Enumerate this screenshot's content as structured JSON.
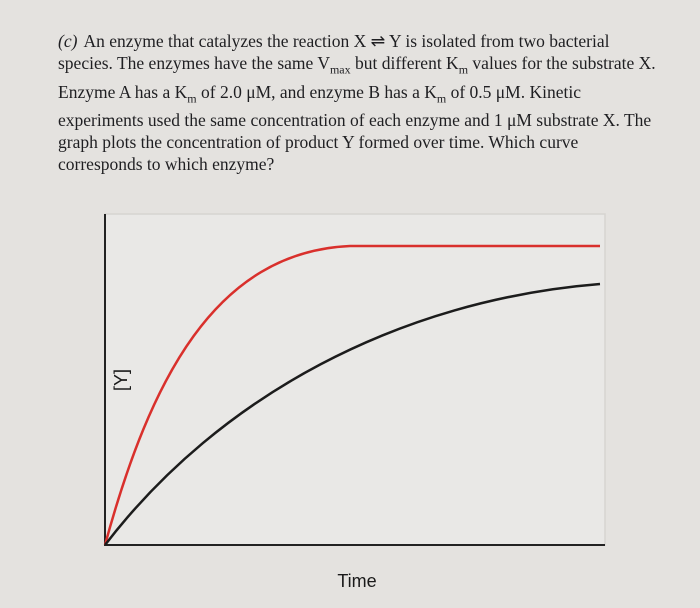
{
  "problem": {
    "label": "(c)",
    "question": [
      "An enzyme that catalyzes the reaction X ⇌ Y is isolated from two bacterial species. The enzymes have the same V",
      "max",
      " but different K",
      "m",
      " values for the substrate X. Enzyme A has a K",
      "m",
      " of 2.0 μM, and enzyme B has a K",
      "m",
      " of 0.5 μM. Kinetic experiments used the same concentration of each enzyme and 1 μM substrate X. The graph plots the concentration of product Y formed over time. Which curve corresponds to which enzyme?"
    ]
  },
  "graph": {
    "y_label": "[Y]",
    "x_label": "Time"
  }
}
